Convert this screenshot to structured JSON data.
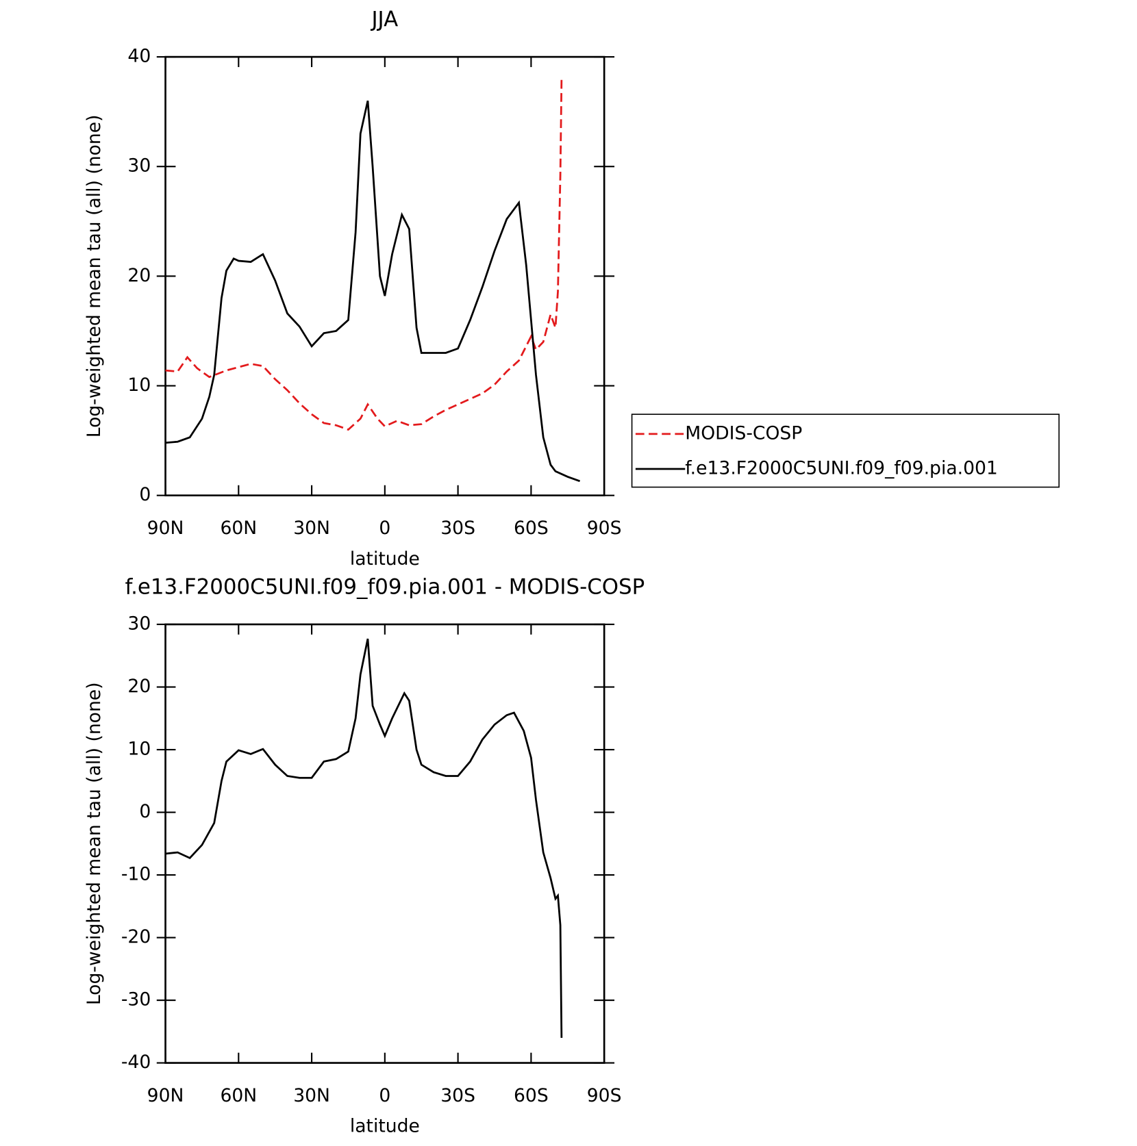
{
  "chart_data": [
    {
      "type": "line",
      "title": "JJA",
      "xlabel": "latitude",
      "ylabel": "Log-weighted mean tau (all) (none)",
      "xlim": [
        90,
        -90
      ],
      "ylim": [
        0,
        40
      ],
      "xticks": [
        {
          "value": 90,
          "label": "90N"
        },
        {
          "value": 60,
          "label": "60N"
        },
        {
          "value": 30,
          "label": "30N"
        },
        0,
        {
          "value": -30,
          "label": "30S"
        },
        {
          "value": -60,
          "label": "60S"
        },
        {
          "value": -90,
          "label": "90S"
        }
      ],
      "yticks": [
        0,
        10,
        20,
        30,
        40
      ],
      "legend": "right",
      "series": [
        {
          "name": "MODIS-COSP",
          "color": "#e31a1c",
          "style": "dashed",
          "x": [
            90,
            85,
            81,
            77,
            72,
            65,
            55,
            50,
            45,
            40,
            35,
            30,
            25,
            20,
            15,
            10,
            7,
            3,
            0,
            -5,
            -10,
            -15,
            -20,
            -25,
            -30,
            -35,
            -40,
            -45,
            -50,
            -55,
            -60,
            -62,
            -65,
            -68,
            -70,
            -71,
            -72,
            -72.5
          ],
          "values": [
            11.4,
            11.3,
            12.6,
            11.6,
            10.8,
            11.4,
            12,
            11.8,
            10.6,
            9.6,
            8.4,
            7.4,
            6.6,
            6.4,
            6,
            7,
            8.3,
            7,
            6.3,
            6.8,
            6.4,
            6.5,
            7.2,
            7.8,
            8.3,
            8.8,
            9.3,
            10.1,
            11.3,
            12.3,
            14.5,
            13.3,
            14,
            16.5,
            15.3,
            18.6,
            29.2,
            38
          ]
        },
        {
          "name": "f.e13.F2000C5UNI.f09_f09.pia.001",
          "color": "#000000",
          "style": "solid",
          "x": [
            90,
            85,
            80,
            75,
            72,
            70,
            67,
            65,
            62,
            60,
            55,
            50,
            45,
            40,
            35,
            30,
            25,
            20,
            15,
            12,
            10,
            7,
            5,
            2,
            0,
            -3,
            -7,
            -10,
            -13,
            -15,
            -20,
            -25,
            -30,
            -35,
            -40,
            -45,
            -50,
            -55,
            -58,
            -60,
            -62,
            -65,
            -68,
            -70,
            -75,
            -80
          ],
          "values": [
            4.8,
            4.9,
            5.3,
            7,
            9,
            11,
            18,
            20.5,
            21.6,
            21.4,
            21.3,
            22,
            19.6,
            16.6,
            15.4,
            13.6,
            14.8,
            15,
            16,
            24,
            33,
            36,
            30,
            20,
            18.2,
            22,
            25.6,
            24.3,
            15.3,
            13,
            13,
            13,
            13.4,
            16,
            19,
            22.3,
            25.2,
            26.7,
            21,
            16,
            11,
            5.3,
            2.8,
            2.2,
            1.7,
            1.3
          ]
        }
      ]
    },
    {
      "type": "line",
      "title": "f.e13.F2000C5UNI.f09_f09.pia.001 - MODIS-COSP",
      "xlabel": "latitude",
      "ylabel": "Log-weighted mean tau (all) (none)",
      "xlim": [
        90,
        -90
      ],
      "ylim": [
        -40,
        30
      ],
      "xticks": [
        {
          "value": 90,
          "label": "90N"
        },
        {
          "value": 60,
          "label": "60N"
        },
        {
          "value": 30,
          "label": "30N"
        },
        0,
        {
          "value": -30,
          "label": "30S"
        },
        {
          "value": -60,
          "label": "60S"
        },
        {
          "value": -90,
          "label": "90S"
        }
      ],
      "yticks": [
        -40,
        -30,
        -20,
        -10,
        0,
        10,
        20,
        30
      ],
      "series": [
        {
          "color": "#000000",
          "style": "solid",
          "x": [
            90,
            85,
            80,
            75,
            70,
            67,
            65,
            60,
            55,
            50,
            45,
            40,
            35,
            30,
            25,
            20,
            15,
            12,
            10,
            7,
            5,
            2,
            0,
            -3,
            -8,
            -10,
            -13,
            -15,
            -20,
            -25,
            -30,
            -35,
            -40,
            -45,
            -50,
            -53,
            -57,
            -60,
            -62,
            -65,
            -68,
            -70,
            -71,
            -72,
            -72.5
          ],
          "values": [
            -6.6,
            -6.4,
            -7.3,
            -5.2,
            -1.7,
            5,
            8.1,
            9.9,
            9.3,
            10.1,
            7.6,
            5.8,
            5.5,
            5.5,
            8.1,
            8.5,
            9.7,
            15,
            22,
            27.7,
            17,
            14,
            12.2,
            15,
            19,
            17.8,
            10,
            7.6,
            6.4,
            5.8,
            5.8,
            8.1,
            11.6,
            14,
            15.5,
            15.9,
            13,
            8.7,
            2,
            -6.4,
            -10.5,
            -13.8,
            -13.3,
            -18,
            -36
          ]
        }
      ]
    }
  ]
}
